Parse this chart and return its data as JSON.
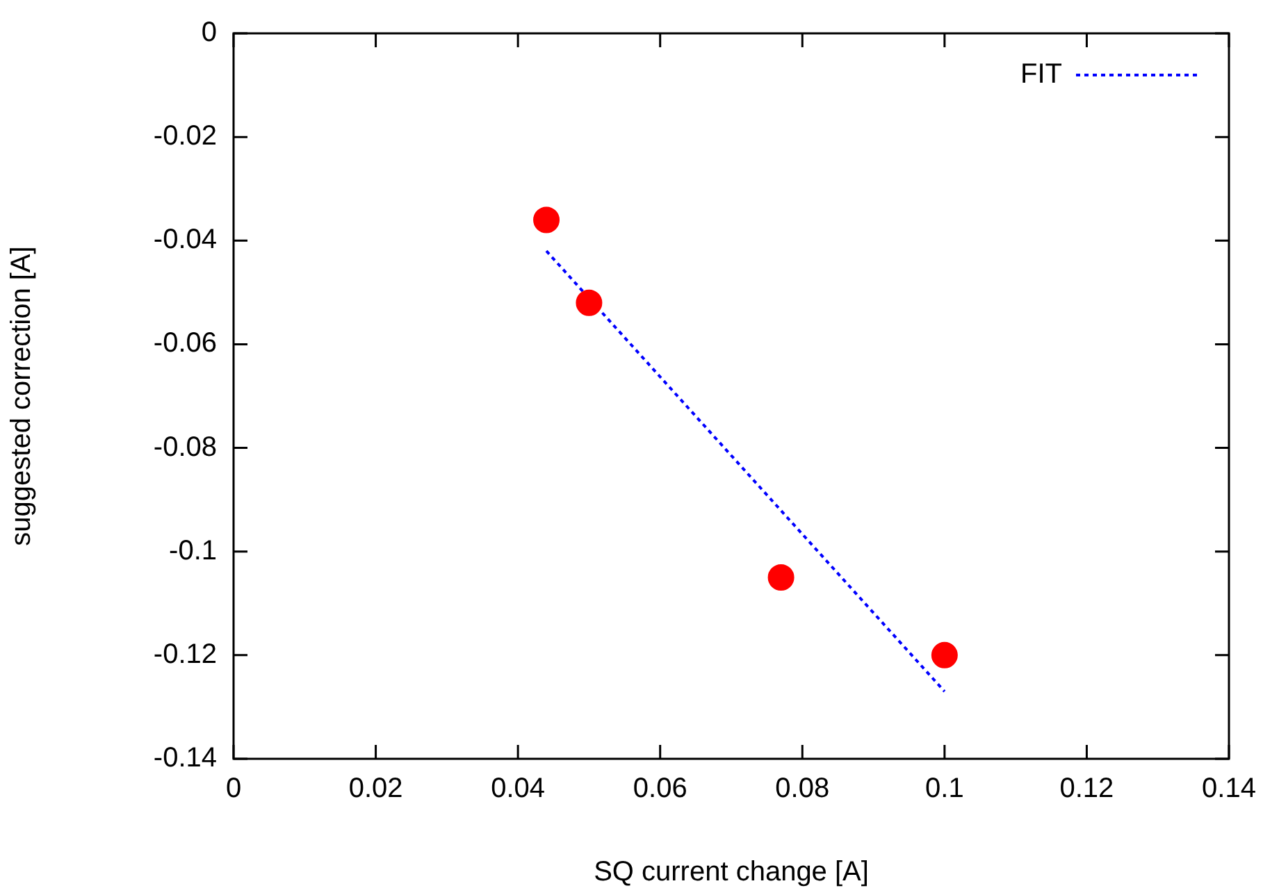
{
  "chart_data": {
    "type": "scatter",
    "xlabel": "SQ current change [A]",
    "ylabel": "suggested correction [A]",
    "x": [
      0.044,
      0.05,
      0.077,
      0.1
    ],
    "series": [
      {
        "color": "#ff0000",
        "values": [
          -0.036,
          -0.052,
          -0.105,
          -0.12
        ],
        "marker": "circle"
      },
      {
        "type": "line",
        "name": "FIT",
        "color": "#0000ff",
        "x": [
          0.044,
          0.1
        ],
        "values": [
          -0.042,
          -0.127
        ],
        "line_style": "dotted",
        "marker": "none"
      }
    ],
    "xlim": [
      0,
      0.14
    ],
    "xticks": [
      0,
      0.02,
      0.04,
      0.06,
      0.08,
      0.1,
      0.12,
      0.14
    ],
    "ylim": [
      -0.14,
      0
    ],
    "yticks": [
      -0.14,
      -0.12,
      -0.1,
      -0.08,
      -0.06,
      -0.04,
      -0.02,
      0
    ],
    "grid": false,
    "legend": "top right"
  }
}
